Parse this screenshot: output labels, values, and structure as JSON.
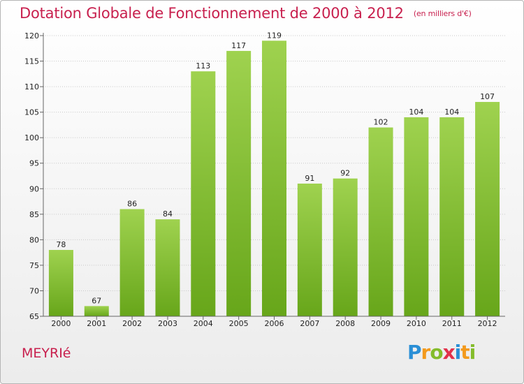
{
  "chart_data": {
    "type": "bar",
    "title": "Dotation Globale de Fonctionnement de 2000 à 2012",
    "subtitle": "(en milliers d'€)",
    "categories": [
      "2000",
      "2001",
      "2002",
      "2003",
      "2004",
      "2005",
      "2006",
      "2007",
      "2008",
      "2009",
      "2010",
      "2011",
      "2012"
    ],
    "values": [
      78,
      67,
      86,
      84,
      113,
      117,
      119,
      91,
      92,
      102,
      104,
      104,
      107
    ],
    "ylim": [
      65,
      120
    ],
    "yticks": [
      65,
      70,
      75,
      80,
      85,
      90,
      95,
      100,
      105,
      110,
      115,
      120
    ],
    "xlabel": "",
    "ylabel": "",
    "grid": true,
    "bar_color": "#8cc63f"
  },
  "place_name": "MEYRIé",
  "logo_text": "Proxiti"
}
